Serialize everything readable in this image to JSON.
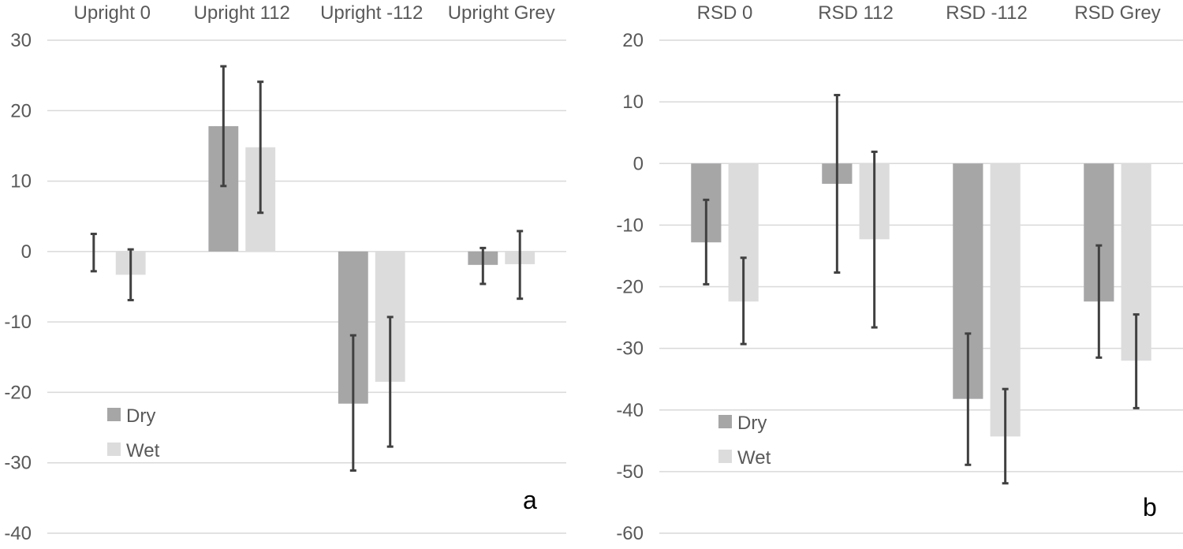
{
  "colors": {
    "dry": "#a6a6a7",
    "wet": "#dcdcdd",
    "error": "#404040",
    "grid": "#d9d9d9"
  },
  "chart_data": [
    {
      "type": "bar",
      "panel_label": "a",
      "categories": [
        "Upright 0",
        "Upright 112",
        "Upright -112",
        "Upright Grey"
      ],
      "ylim": [
        -40,
        30
      ],
      "yticks": [
        "30",
        "20",
        "10",
        "0",
        "-10",
        "-20",
        "-30",
        "-40"
      ],
      "legend": [
        "Dry",
        "Wet"
      ],
      "series": [
        {
          "name": "Dry",
          "values": [
            0,
            17.8,
            -21.6,
            -1.9
          ],
          "err_low": [
            -2.8,
            9.3,
            -31.1,
            -4.6
          ],
          "err_high": [
            2.5,
            26.3,
            -11.9,
            0.5
          ]
        },
        {
          "name": "Wet",
          "values": [
            -3.3,
            14.8,
            -18.5,
            -1.8
          ],
          "err_low": [
            -6.9,
            5.5,
            -27.7,
            -6.7
          ],
          "err_high": [
            0.3,
            24.1,
            -9.3,
            2.9
          ]
        }
      ]
    },
    {
      "type": "bar",
      "panel_label": "b",
      "categories": [
        "RSD 0",
        "RSD 112",
        "RSD -112",
        "RSD Grey"
      ],
      "ylim": [
        -60,
        20
      ],
      "yticks": [
        "20",
        "10",
        "0",
        "-10",
        "-20",
        "-30",
        "-40",
        "-50",
        "-60"
      ],
      "legend": [
        "Dry",
        "Wet"
      ],
      "series": [
        {
          "name": "Dry",
          "values": [
            -12.8,
            -3.3,
            -38.2,
            -22.4
          ],
          "err_low": [
            -19.6,
            -17.7,
            -48.9,
            -31.5
          ],
          "err_high": [
            -5.9,
            11.1,
            -27.6,
            -13.3
          ]
        },
        {
          "name": "Wet",
          "values": [
            -22.4,
            -12.3,
            -44.3,
            -32.0
          ],
          "err_low": [
            -29.3,
            -26.6,
            -51.9,
            -39.7
          ],
          "err_high": [
            -15.3,
            1.9,
            -36.6,
            -24.5
          ]
        }
      ]
    }
  ]
}
